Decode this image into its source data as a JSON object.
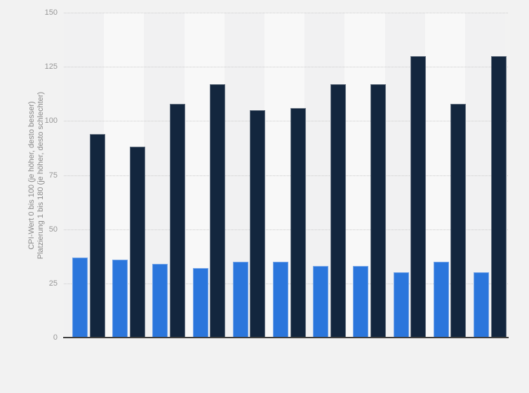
{
  "chart_data": {
    "type": "bar",
    "layout": "grouped-pairs-vertical",
    "n_groups": 11,
    "x_axis_labels_visible": false,
    "title": "",
    "xlabel": "",
    "ylabel_line1": "CPI-Wert 0 bis 100 (je höher, desto besser)",
    "ylabel_line2": "Platzierung 1 bis 180 (je höher, desto schlechter)",
    "ylim": [
      0,
      150
    ],
    "y_ticks": [
      0,
      25,
      50,
      75,
      100,
      125,
      150
    ],
    "grid": "horizontal-dotted",
    "legend_position": "none-visible",
    "series": [
      {
        "name": "CPI-Wert",
        "color": "#2b76dc",
        "values": [
          37,
          36,
          34,
          32,
          35,
          35,
          33,
          33,
          30,
          35,
          30
        ]
      },
      {
        "name": "Platzierung",
        "color": "#13263e",
        "values": [
          94,
          88,
          108,
          117,
          105,
          106,
          117,
          117,
          130,
          108,
          130
        ]
      }
    ]
  },
  "colors": {
    "page_bg": "#f2f2f2",
    "band_dark": "#f1f1f2",
    "band_light": "#f8f8f8",
    "gridline": "#cccccc",
    "axis_line": "#3f3f3f",
    "tick_text": "#979797",
    "axis_label_text": "#8a8a8a",
    "bar_border": "rgba(255,255,255,0.35)"
  }
}
